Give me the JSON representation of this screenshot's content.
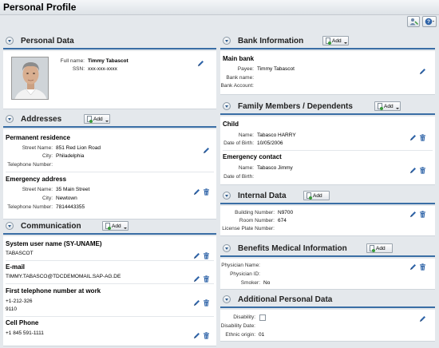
{
  "page": {
    "title": "Personal Profile"
  },
  "toolbar": {
    "buttons": [
      {
        "icon": "person-settings-icon"
      },
      {
        "icon": "help-icon",
        "label": "?"
      }
    ]
  },
  "add_label": "Add",
  "personal_data": {
    "title": "Personal Data",
    "fields": [
      {
        "label": "Full name:",
        "value": "Timmy Tabascot"
      },
      {
        "label": "SSN:",
        "value": "xxx-xxx-xxxx"
      }
    ]
  },
  "addresses": {
    "title": "Addresses",
    "groups": [
      {
        "heading": "Permanent residence",
        "fields": [
          {
            "label": "Street Name:",
            "value": "851 Red Lion Road"
          },
          {
            "label": "City:",
            "value": "Philadelphia"
          },
          {
            "label": "Telephone Number:",
            "value": ""
          }
        ]
      },
      {
        "heading": "Emergency address",
        "fields": [
          {
            "label": "Street Name:",
            "value": "35 Main Street"
          },
          {
            "label": "City:",
            "value": "Newtown"
          },
          {
            "label": "Telephone Number:",
            "value": "7814443355"
          }
        ]
      }
    ]
  },
  "communication": {
    "title": "Communication",
    "groups": [
      {
        "heading": "System user name (SY-UNAME)",
        "lines": [
          "TABASCOT"
        ]
      },
      {
        "heading": "E-mail",
        "lines": [
          "TIMMY.TABASCO@TDCDEMOMAIL.SAP-AG.DE"
        ]
      },
      {
        "heading": "First telephone number at work",
        "lines": [
          "+1-212-326",
          "9110"
        ]
      },
      {
        "heading": "Cell Phone",
        "lines": [
          "+1 845 591-1111"
        ]
      }
    ]
  },
  "bank": {
    "title": "Bank Information",
    "heading": "Main bank",
    "fields": [
      {
        "label": "Payee:",
        "value": "Timmy Tabascot"
      },
      {
        "label": "Bank name:",
        "value": ""
      },
      {
        "label": "Bank Account:",
        "value": ""
      }
    ]
  },
  "family": {
    "title": "Family Members / Dependents",
    "groups": [
      {
        "heading": "Child",
        "fields": [
          {
            "label": "Name:",
            "value": "Tabasco HARRY"
          },
          {
            "label": "Date of Birth:",
            "value": "10/05/2006"
          }
        ]
      },
      {
        "heading": "Emergency contact",
        "fields": [
          {
            "label": "Name:",
            "value": "Tabasco Jimmy"
          },
          {
            "label": "Date of Birth:",
            "value": ""
          }
        ]
      }
    ]
  },
  "internal": {
    "title": "Internal Data",
    "fields": [
      {
        "label": "Building Number:",
        "value": "N9700"
      },
      {
        "label": "Room Number:",
        "value": "674"
      },
      {
        "label": "License Plate Number:",
        "value": ""
      }
    ]
  },
  "benefits": {
    "title": "Benefits Medical Information",
    "fields": [
      {
        "label": "Physician Name:",
        "value": ""
      },
      {
        "label": "Physician ID:",
        "value": ""
      },
      {
        "label": "Smoker:",
        "value": "No"
      }
    ]
  },
  "additional": {
    "title": "Additional Personal Data",
    "fields": [
      {
        "label": "Disability:",
        "value": ""
      },
      {
        "label": "Disability Date:",
        "value": ""
      },
      {
        "label": "Ethnic origin:",
        "value": "01"
      }
    ]
  },
  "colors": {
    "accent": "#3a6ea5",
    "icon_blue": "#2f64a8",
    "background": "#e4e8ec"
  }
}
